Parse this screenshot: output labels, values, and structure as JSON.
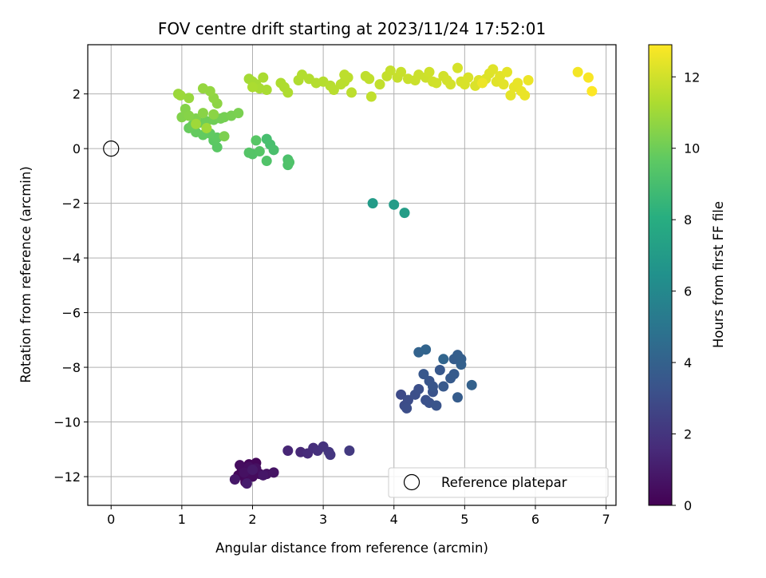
{
  "chart_data": {
    "type": "scatter",
    "title": "FOV centre drift starting at 2023/11/24 17:52:01",
    "xlabel": "Angular distance from reference (arcmin)",
    "ylabel": "Rotation from reference (arcmin)",
    "colorbar_label": "Hours from first FF file",
    "xlim": [
      -0.33,
      7.14
    ],
    "ylim": [
      -13.05,
      3.8
    ],
    "x_ticks": [
      0,
      1,
      2,
      3,
      4,
      5,
      6,
      7
    ],
    "y_ticks": [
      -12,
      -10,
      -8,
      -6,
      -4,
      -2,
      0,
      2
    ],
    "colorbar_range": [
      0,
      12.9
    ],
    "colorbar_ticks": [
      0,
      2,
      4,
      6,
      8,
      10,
      12
    ],
    "colormap": "viridis",
    "grid": true,
    "legend": {
      "label": "Reference platepar",
      "placement": "lower-right"
    },
    "reference_point": {
      "x": 0,
      "y": 0
    },
    "points": [
      [
        1.9,
        -12.1,
        0.05
      ],
      [
        1.85,
        -11.8,
        0.1
      ],
      [
        1.95,
        -11.55,
        0.15
      ],
      [
        2.05,
        -11.5,
        0.2
      ],
      [
        1.8,
        -11.95,
        0.25
      ],
      [
        1.9,
        -12.2,
        0.3
      ],
      [
        2.1,
        -11.9,
        0.35
      ],
      [
        2.0,
        -12.0,
        0.4
      ],
      [
        1.82,
        -11.58,
        0.45
      ],
      [
        1.95,
        -11.65,
        0.5
      ],
      [
        2.05,
        -11.7,
        0.55
      ],
      [
        1.88,
        -11.85,
        0.6
      ],
      [
        2.2,
        -11.9,
        0.65
      ],
      [
        2.3,
        -11.85,
        0.7
      ],
      [
        2.15,
        -11.95,
        0.8
      ],
      [
        1.75,
        -12.1,
        0.85
      ],
      [
        2.0,
        -11.75,
        0.9
      ],
      [
        1.92,
        -12.25,
        1.0
      ],
      [
        2.5,
        -11.05,
        1.4
      ],
      [
        2.68,
        -11.1,
        1.5
      ],
      [
        2.78,
        -11.15,
        1.6
      ],
      [
        2.86,
        -10.95,
        1.7
      ],
      [
        2.92,
        -11.05,
        1.8
      ],
      [
        3.0,
        -10.9,
        1.9
      ],
      [
        3.08,
        -11.1,
        2.0
      ],
      [
        3.1,
        -11.2,
        2.05
      ],
      [
        3.37,
        -11.05,
        2.2
      ],
      [
        4.1,
        -9.0,
        2.9
      ],
      [
        4.15,
        -9.4,
        2.95
      ],
      [
        4.2,
        -9.2,
        3.0
      ],
      [
        4.18,
        -9.5,
        3.05
      ],
      [
        4.3,
        -9.0,
        3.1
      ],
      [
        4.35,
        -8.8,
        3.15
      ],
      [
        4.45,
        -9.2,
        3.2
      ],
      [
        4.5,
        -9.3,
        3.25
      ],
      [
        4.55,
        -8.9,
        3.3
      ],
      [
        4.6,
        -9.4,
        3.35
      ],
      [
        4.5,
        -8.5,
        3.4
      ],
      [
        4.55,
        -8.7,
        3.45
      ],
      [
        4.42,
        -8.25,
        3.5
      ],
      [
        4.65,
        -8.1,
        3.55
      ],
      [
        4.7,
        -8.7,
        3.6
      ],
      [
        4.8,
        -8.4,
        3.65
      ],
      [
        4.85,
        -8.25,
        3.7
      ],
      [
        4.9,
        -9.1,
        3.75
      ],
      [
        4.85,
        -7.7,
        3.8
      ],
      [
        4.9,
        -7.55,
        3.85
      ],
      [
        4.95,
        -7.7,
        3.9
      ],
      [
        4.95,
        -7.9,
        3.95
      ],
      [
        5.1,
        -8.65,
        4.0
      ],
      [
        4.35,
        -7.45,
        4.1
      ],
      [
        4.45,
        -7.35,
        4.15
      ],
      [
        4.7,
        -7.7,
        4.2
      ],
      [
        3.7,
        -2.0,
        7.0
      ],
      [
        4.0,
        -2.05,
        7.05
      ],
      [
        4.15,
        -2.35,
        7.1
      ],
      [
        2.2,
        0.35,
        9.0
      ],
      [
        2.25,
        0.15,
        9.05
      ],
      [
        2.3,
        -0.05,
        9.1
      ],
      [
        2.5,
        -0.4,
        9.15
      ],
      [
        2.5,
        -0.6,
        9.2
      ],
      [
        2.52,
        -0.5,
        9.25
      ],
      [
        2.2,
        -0.45,
        9.3
      ],
      [
        2.0,
        -0.2,
        9.35
      ],
      [
        1.95,
        -0.15,
        9.4
      ],
      [
        2.1,
        -0.1,
        9.45
      ],
      [
        2.05,
        0.3,
        9.5
      ],
      [
        1.5,
        0.05,
        9.55
      ],
      [
        1.45,
        0.3,
        9.6
      ],
      [
        1.5,
        0.4,
        9.65
      ],
      [
        1.4,
        0.55,
        9.7
      ],
      [
        1.3,
        0.5,
        9.75
      ],
      [
        1.2,
        0.6,
        9.8
      ],
      [
        1.1,
        0.75,
        9.85
      ],
      [
        1.15,
        0.85,
        9.9
      ],
      [
        1.25,
        0.95,
        9.95
      ],
      [
        1.35,
        1.0,
        10.0
      ],
      [
        1.45,
        1.05,
        10.05
      ],
      [
        1.55,
        1.1,
        10.1
      ],
      [
        1.6,
        1.15,
        10.15
      ],
      [
        1.7,
        1.2,
        10.2
      ],
      [
        1.8,
        1.3,
        10.25
      ],
      [
        1.6,
        0.45,
        10.3
      ],
      [
        1.2,
        1.1,
        10.35
      ],
      [
        1.0,
        1.15,
        10.4
      ],
      [
        1.05,
        1.45,
        10.45
      ],
      [
        1.1,
        1.2,
        10.5
      ],
      [
        1.3,
        1.3,
        10.55
      ],
      [
        1.45,
        1.25,
        10.6
      ],
      [
        1.5,
        1.65,
        10.65
      ],
      [
        1.45,
        1.85,
        10.7
      ],
      [
        1.4,
        2.1,
        10.75
      ],
      [
        1.3,
        2.2,
        10.8
      ],
      [
        1.1,
        1.85,
        10.85
      ],
      [
        0.95,
        2.0,
        10.9
      ],
      [
        0.98,
        1.95,
        10.95
      ],
      [
        1.2,
        0.9,
        11.0
      ],
      [
        1.35,
        0.75,
        11.02
      ],
      [
        1.95,
        2.55,
        11.1
      ],
      [
        2.0,
        2.45,
        11.12
      ],
      [
        2.05,
        2.35,
        11.15
      ],
      [
        2.1,
        2.2,
        11.18
      ],
      [
        2.2,
        2.15,
        11.2
      ],
      [
        2.15,
        2.6,
        11.22
      ],
      [
        2.0,
        2.25,
        11.25
      ],
      [
        2.4,
        2.4,
        11.28
      ],
      [
        2.45,
        2.25,
        11.3
      ],
      [
        2.5,
        2.05,
        11.32
      ],
      [
        2.65,
        2.5,
        11.35
      ],
      [
        2.7,
        2.7,
        11.38
      ],
      [
        2.8,
        2.55,
        11.4
      ],
      [
        2.9,
        2.4,
        11.42
      ],
      [
        3.0,
        2.45,
        11.45
      ],
      [
        3.1,
        2.3,
        11.48
      ],
      [
        3.15,
        2.15,
        11.5
      ],
      [
        3.25,
        2.35,
        11.52
      ],
      [
        3.3,
        2.45,
        11.55
      ],
      [
        3.35,
        2.6,
        11.58
      ],
      [
        3.4,
        2.05,
        11.6
      ],
      [
        3.3,
        2.7,
        11.62
      ],
      [
        3.6,
        2.65,
        11.65
      ],
      [
        3.65,
        2.55,
        11.68
      ],
      [
        3.68,
        1.9,
        11.7
      ],
      [
        3.8,
        2.35,
        11.72
      ],
      [
        3.9,
        2.65,
        11.75
      ],
      [
        3.95,
        2.85,
        11.78
      ],
      [
        4.05,
        2.6,
        11.8
      ],
      [
        4.1,
        2.8,
        11.82
      ],
      [
        4.2,
        2.55,
        11.85
      ],
      [
        4.3,
        2.5,
        11.88
      ],
      [
        4.35,
        2.7,
        11.9
      ],
      [
        4.45,
        2.6,
        11.92
      ],
      [
        4.5,
        2.8,
        11.95
      ],
      [
        4.55,
        2.45,
        11.98
      ],
      [
        4.6,
        2.4,
        12.0
      ],
      [
        4.7,
        2.65,
        12.02
      ],
      [
        4.75,
        2.5,
        12.05
      ],
      [
        4.8,
        2.35,
        12.08
      ],
      [
        4.9,
        2.95,
        12.1
      ],
      [
        4.95,
        2.45,
        12.12
      ],
      [
        5.0,
        2.35,
        12.15
      ],
      [
        5.05,
        2.6,
        12.18
      ],
      [
        5.15,
        2.3,
        12.2
      ],
      [
        5.2,
        2.5,
        12.22
      ],
      [
        5.3,
        2.55,
        12.25
      ],
      [
        5.35,
        2.75,
        12.28
      ],
      [
        5.4,
        2.9,
        12.3
      ],
      [
        5.45,
        2.45,
        12.32
      ],
      [
        5.5,
        2.65,
        12.35
      ],
      [
        5.55,
        2.35,
        12.38
      ],
      [
        5.6,
        2.8,
        12.4
      ],
      [
        5.65,
        1.95,
        12.42
      ],
      [
        5.7,
        2.25,
        12.45
      ],
      [
        5.75,
        2.4,
        12.48
      ],
      [
        5.8,
        2.1,
        12.5
      ],
      [
        5.85,
        1.95,
        12.52
      ],
      [
        5.9,
        2.5,
        12.55
      ],
      [
        5.25,
        2.4,
        12.58
      ],
      [
        6.6,
        2.8,
        12.7
      ],
      [
        6.75,
        2.6,
        12.8
      ],
      [
        6.8,
        2.1,
        12.9
      ]
    ]
  }
}
